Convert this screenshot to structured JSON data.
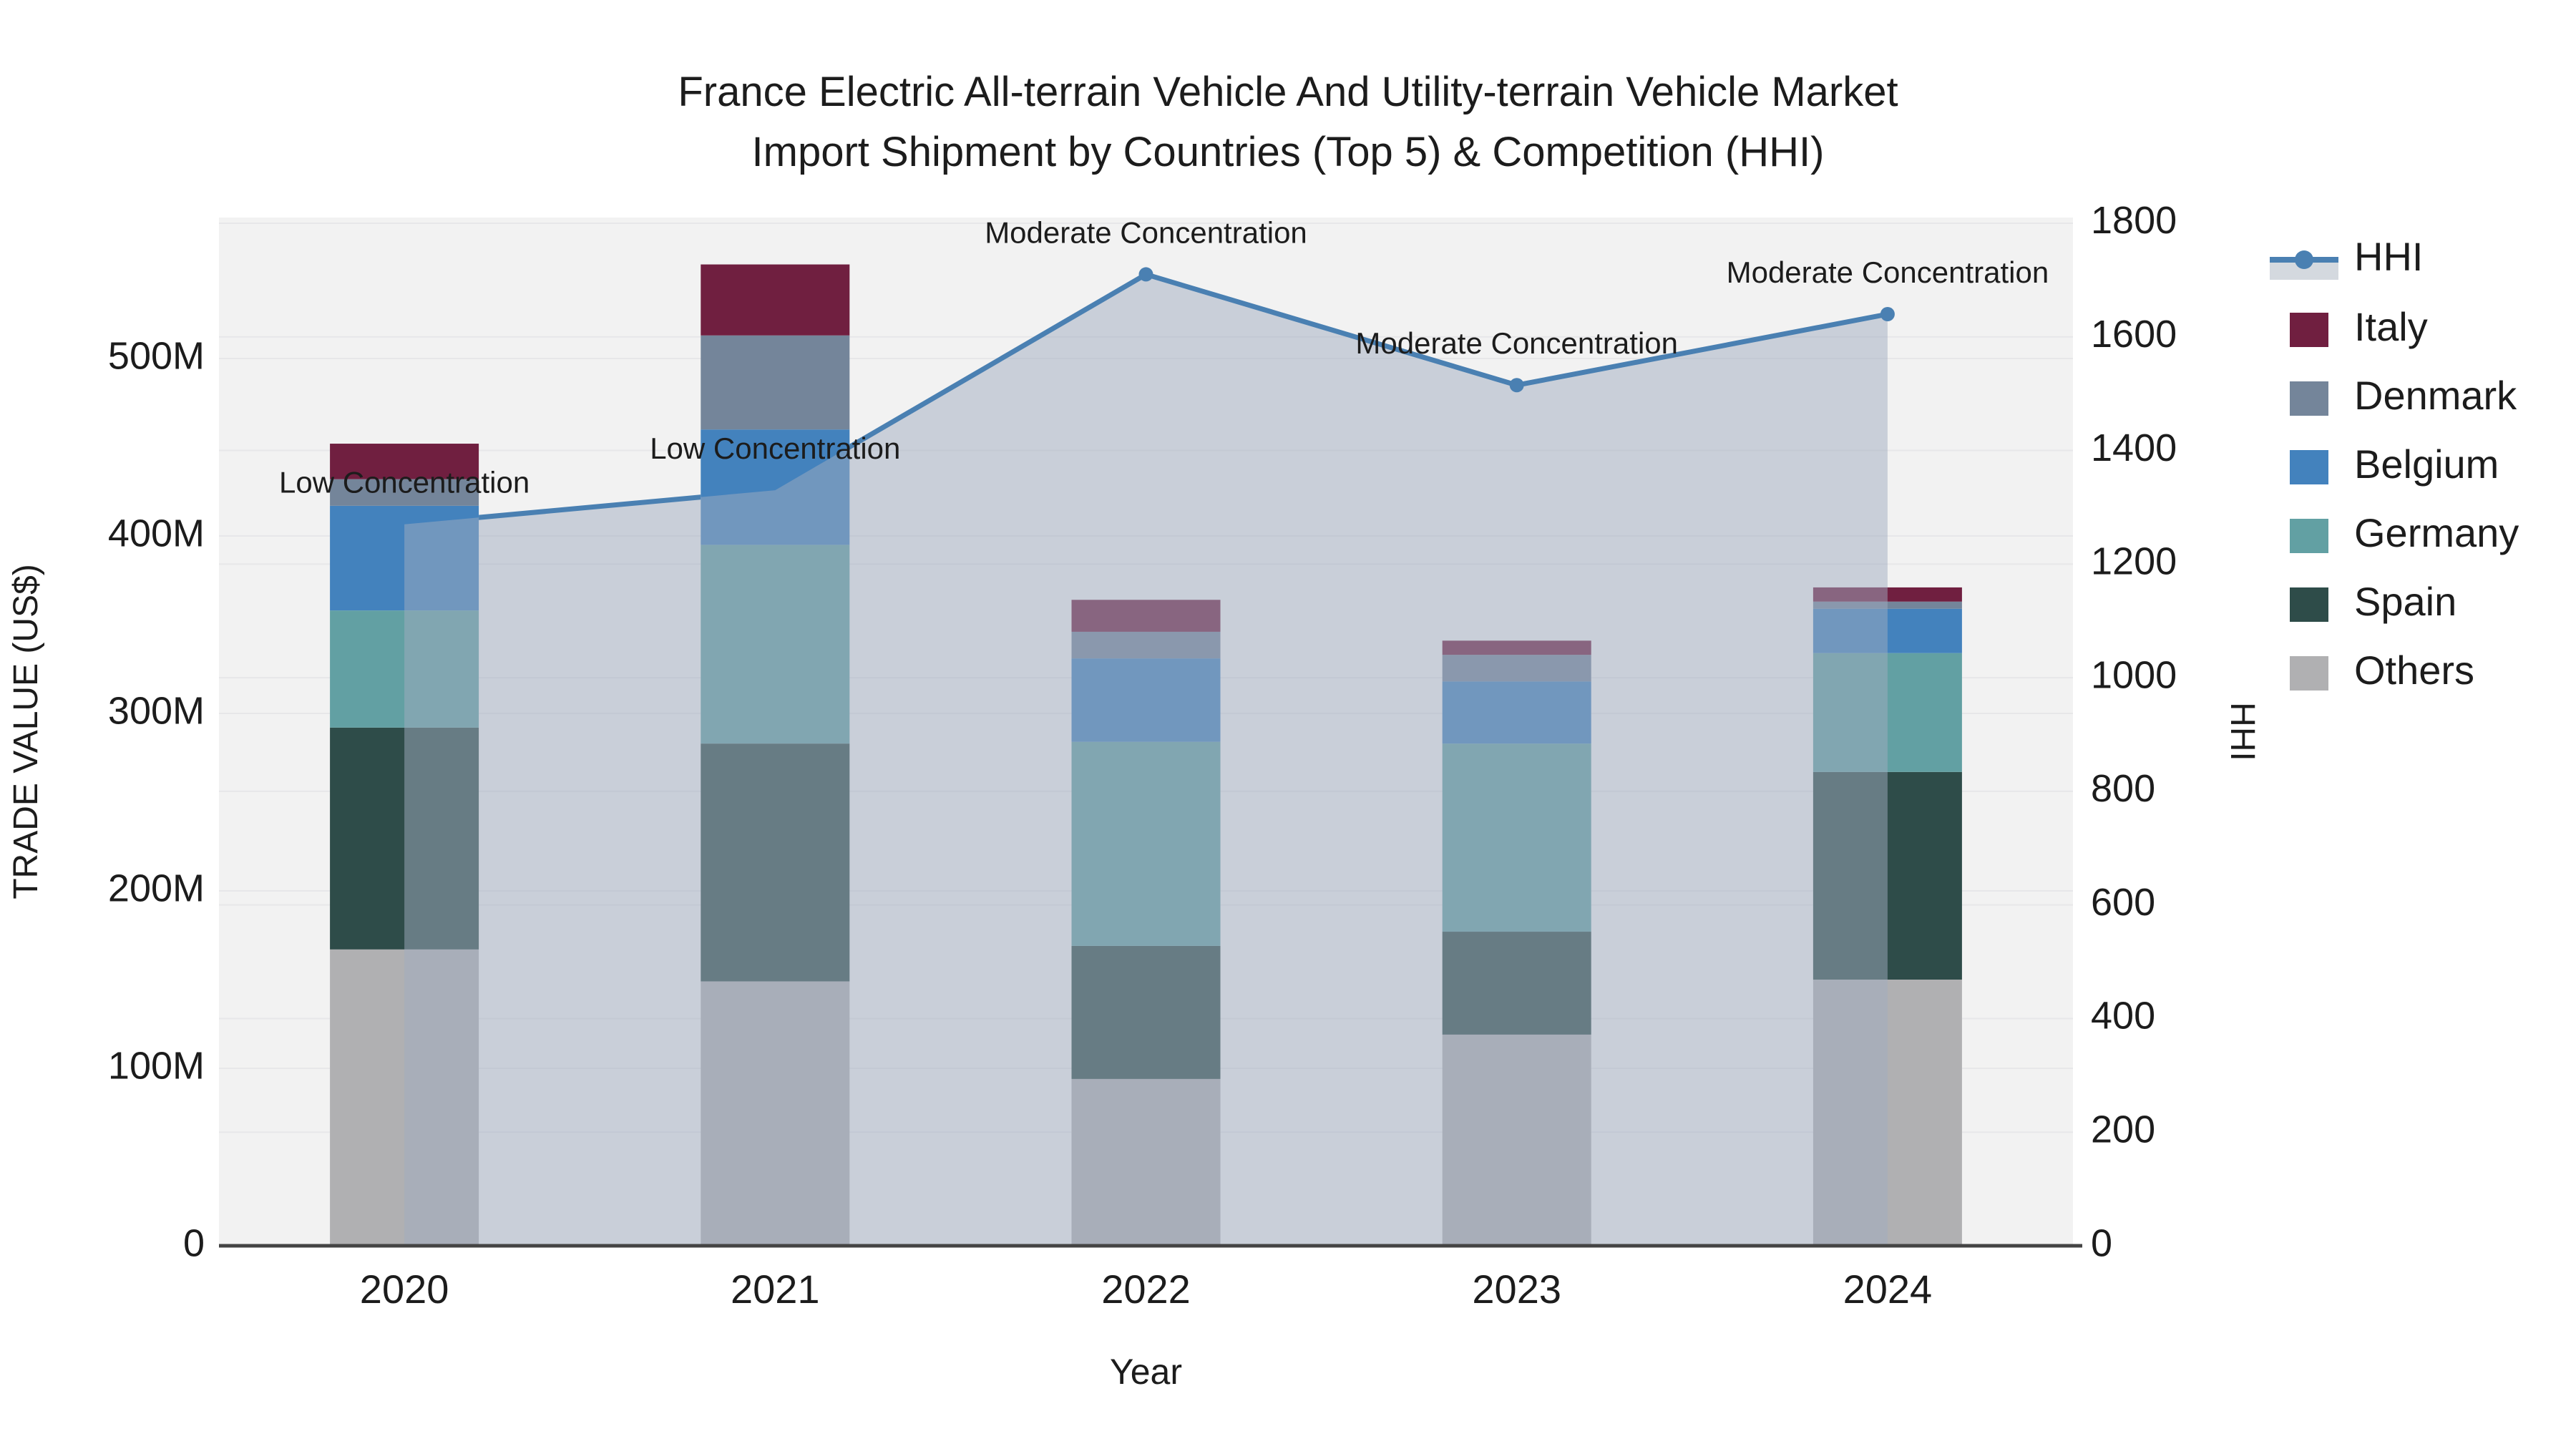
{
  "title": {
    "line1": "France Electric All-terrain Vehicle And Utility-terrain Vehicle Market",
    "line2": "Import Shipment by Countries (Top 5) & Competition (HHI)"
  },
  "colors": {
    "background": "#ffffff",
    "plot_background": "#f2f2f2",
    "grid": "#e7e7e9",
    "axis_line": "#444444",
    "text": "#1c1c1c",
    "hhi_line": "#4a80b2",
    "hhi_fill": "rgba(160,172,192,0.5)",
    "legend_fill_chip": "#d4d9df"
  },
  "legend": {
    "items": [
      {
        "label": "HHI",
        "type": "line",
        "color": "#4a80b2"
      },
      {
        "label": "Italy",
        "type": "swatch",
        "color": "#701f40"
      },
      {
        "label": "Denmark",
        "type": "swatch",
        "color": "#74859a"
      },
      {
        "label": "Belgium",
        "type": "swatch",
        "color": "#4382bd"
      },
      {
        "label": "Germany",
        "type": "swatch",
        "color": "#62a0a3"
      },
      {
        "label": "Spain",
        "type": "swatch",
        "color": "#2e4c49"
      },
      {
        "label": "Others",
        "type": "swatch",
        "color": "#b0b0b2"
      }
    ]
  },
  "chart_data": {
    "type": "combo: stacked-bar + line-area",
    "categories": [
      "2020",
      "2021",
      "2022",
      "2023",
      "2024"
    ],
    "bar_unit": "M US$ (trade value)",
    "series": [
      {
        "name": "Italy",
        "color": "#701f40",
        "values": [
          20,
          40,
          18,
          8,
          8
        ]
      },
      {
        "name": "Denmark",
        "color": "#74859a",
        "values": [
          15,
          53,
          15,
          15,
          4
        ]
      },
      {
        "name": "Belgium",
        "color": "#4382bd",
        "values": [
          59,
          65,
          47,
          35,
          25
        ]
      },
      {
        "name": "Germany",
        "color": "#62a0a3",
        "values": [
          66,
          112,
          115,
          106,
          67
        ]
      },
      {
        "name": "Spain",
        "color": "#2e4c49",
        "values": [
          125,
          134,
          75,
          58,
          117
        ]
      },
      {
        "name": "Others",
        "color": "#b0b0b2",
        "values": [
          167,
          149,
          94,
          119,
          150
        ]
      }
    ],
    "stack_order_bottom_to_top": [
      "Others",
      "Spain",
      "Germany",
      "Belgium",
      "Denmark",
      "Italy"
    ],
    "totals_m": [
      452,
      553,
      364,
      341,
      371
    ],
    "line": {
      "name": "HHI",
      "color": "#4a80b2",
      "values": [
        1270,
        1330,
        1710,
        1515,
        1640
      ],
      "area_fill": "rgba(160,172,192,0.5)"
    },
    "annotations": [
      "Low Concentration",
      "Low Concentration",
      "Moderate Concentration",
      "Moderate Concentration",
      "Moderate Concentration"
    ],
    "y_left": {
      "label": "TRADE VALUE (US$)",
      "tick_values": [
        0,
        100,
        200,
        300,
        400,
        500
      ],
      "tick_labels": [
        "0",
        "100M",
        "200M",
        "300M",
        "400M",
        "500M"
      ],
      "range_m": [
        0,
        580
      ]
    },
    "y_right": {
      "label": "HHI",
      "tick_values": [
        0,
        200,
        400,
        600,
        800,
        1000,
        1200,
        1400,
        1600,
        1800
      ],
      "tick_labels": [
        "0",
        "200",
        "400",
        "600",
        "800",
        "1000",
        "1200",
        "1400",
        "1600",
        "1800"
      ],
      "range": [
        0,
        1810
      ]
    },
    "x": {
      "label": "Year"
    },
    "grid": "horizontal gridlines for both y axes, no vertical gridlines",
    "legend_position": "right"
  }
}
